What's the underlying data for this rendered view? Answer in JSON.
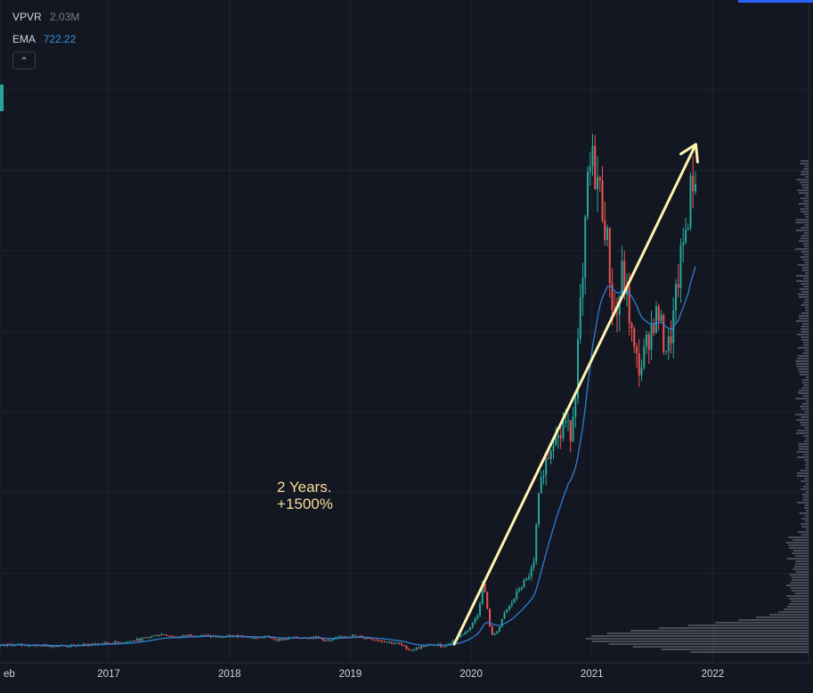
{
  "legend": {
    "vpvr_label": "VPVR",
    "vpvr_value": "2.03M",
    "ema_label": "EMA",
    "ema_value": "722.22"
  },
  "controls": {
    "collapse_icon": "chevron-up-icon",
    "collapse_glyph": "⌃"
  },
  "annotation": {
    "line1": "2 Years.",
    "line2": "+1500%"
  },
  "colors": {
    "background": "#131722",
    "up": "#26a69a",
    "down": "#ef5350",
    "ema": "#2e7fd1",
    "grid": "#1f2330",
    "arrow": "#fff3b0",
    "annotation": "#f7dd9a",
    "accent": "#2962ff",
    "volume_profile": "#5d606b",
    "axis_text": "#d1d4dc"
  },
  "chart_data": {
    "type": "candlestick",
    "title": "",
    "xlabel": "",
    "ylabel": "",
    "x_ticks": [
      "eb",
      "2017",
      "2018",
      "2019",
      "2020",
      "2021",
      "2022"
    ],
    "x_range": [
      2016.1,
      2022.55
    ],
    "y_range": [
      0,
      800
    ],
    "grid": true,
    "y_scale": "linear",
    "price_path": [
      [
        2016.1,
        9.5
      ],
      [
        2016.2,
        11.5
      ],
      [
        2016.35,
        10.8
      ],
      [
        2016.5,
        10.2
      ],
      [
        2016.62,
        9.8
      ],
      [
        2016.75,
        10.5
      ],
      [
        2016.88,
        12.5
      ],
      [
        2017.0,
        13.5
      ],
      [
        2017.12,
        14.5
      ],
      [
        2017.25,
        17.5
      ],
      [
        2017.37,
        22.5
      ],
      [
        2017.45,
        24.5
      ],
      [
        2017.55,
        20.5
      ],
      [
        2017.67,
        23.5
      ],
      [
        2017.8,
        22.5
      ],
      [
        2017.92,
        20.5
      ],
      [
        2018.0,
        21.5
      ],
      [
        2018.1,
        22.5
      ],
      [
        2018.2,
        19.5
      ],
      [
        2018.3,
        21.5
      ],
      [
        2018.4,
        17.5
      ],
      [
        2018.5,
        19.5
      ],
      [
        2018.62,
        20.5
      ],
      [
        2018.72,
        20.5
      ],
      [
        2018.82,
        15.5
      ],
      [
        2018.92,
        21.5
      ],
      [
        2019.0,
        22.5
      ],
      [
        2019.1,
        20.5
      ],
      [
        2019.22,
        17.5
      ],
      [
        2019.32,
        14.5
      ],
      [
        2019.4,
        12.5
      ],
      [
        2019.5,
        4.5
      ],
      [
        2019.6,
        9.5
      ],
      [
        2019.7,
        11.5
      ],
      [
        2019.78,
        9.5
      ],
      [
        2019.86,
        17.5
      ],
      [
        2019.94,
        25.5
      ],
      [
        2020.0,
        34.5
      ],
      [
        2020.06,
        51.5
      ],
      [
        2020.1,
        91.5
      ],
      [
        2020.14,
        47.5
      ],
      [
        2020.17,
        21.5
      ],
      [
        2020.23,
        31.5
      ],
      [
        2020.28,
        51.5
      ],
      [
        2020.33,
        61.5
      ],
      [
        2020.4,
        81.5
      ],
      [
        2020.46,
        91.5
      ],
      [
        2020.52,
        111.5
      ],
      [
        2020.55,
        181.5
      ],
      [
        2020.6,
        231.5
      ],
      [
        2020.65,
        251.5
      ],
      [
        2020.7,
        281.5
      ],
      [
        2020.73,
        261.5
      ],
      [
        2020.77,
        291.5
      ],
      [
        2020.82,
        271.5
      ],
      [
        2020.86,
        321.5
      ],
      [
        2020.9,
        421.5
      ],
      [
        2020.93,
        461.5
      ],
      [
        2020.96,
        581.5
      ],
      [
        2021.0,
        611.5
      ],
      [
        2021.04,
        591.5
      ],
      [
        2021.08,
        561.5
      ],
      [
        2021.12,
        521.5
      ],
      [
        2021.17,
        431.5
      ],
      [
        2021.2,
        411.5
      ],
      [
        2021.25,
        471.5
      ],
      [
        2021.3,
        431.5
      ],
      [
        2021.35,
        371.5
      ],
      [
        2021.4,
        351.5
      ],
      [
        2021.45,
        381.5
      ],
      [
        2021.5,
        411.5
      ],
      [
        2021.55,
        421.5
      ],
      [
        2021.6,
        381.5
      ],
      [
        2021.64,
        381.5
      ],
      [
        2021.68,
        421.5
      ],
      [
        2021.72,
        471.5
      ],
      [
        2021.76,
        511.5
      ],
      [
        2021.8,
        551.5
      ],
      [
        2021.83,
        591.5
      ],
      [
        2021.86,
        581.5
      ]
    ],
    "ema_last": 722.22,
    "arrow": {
      "from": [
        2019.86,
        12
      ],
      "to": [
        2021.86,
        632
      ]
    },
    "volume_profile_peak_price": 20
  }
}
